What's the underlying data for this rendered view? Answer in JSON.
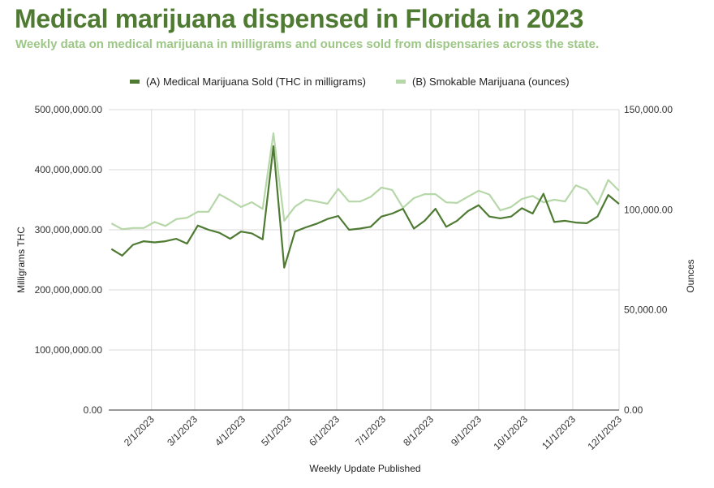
{
  "chart_data": {
    "type": "line",
    "title": "Medical marijuana dispensed in Florida in 2023",
    "subtitle": "Weekly data on medical marijuana in milligrams and ounces sold from dispensaries across the state.",
    "xlabel": "Weekly Update Published",
    "ylabel_left": "Milligrams THC",
    "ylabel_right": "Ounces",
    "ylim_left": [
      0,
      500000000
    ],
    "ylim_right": [
      0,
      150000
    ],
    "yticks_left": [
      "0.00",
      "100,000,000.00",
      "200,000,000.00",
      "300,000,000.00",
      "400,000,000.00",
      "500,000,000.00"
    ],
    "yticks_right": [
      "0.00",
      "50,000.00",
      "100,000.00",
      "150,000.00"
    ],
    "xticks": [
      "2/1/2023",
      "3/1/2023",
      "4/1/2023",
      "5/1/2023",
      "6/1/2023",
      "7/1/2023",
      "8/1/2023",
      "9/1/2023",
      "10/1/2023",
      "11/1/2023",
      "12/1/2023"
    ],
    "grid": true,
    "legend_position": "top",
    "x": [
      "2023-01-06",
      "2023-01-13",
      "2023-01-20",
      "2023-01-27",
      "2023-02-03",
      "2023-02-10",
      "2023-02-17",
      "2023-02-24",
      "2023-03-03",
      "2023-03-10",
      "2023-03-17",
      "2023-03-24",
      "2023-03-31",
      "2023-04-07",
      "2023-04-14",
      "2023-04-21",
      "2023-04-28",
      "2023-05-05",
      "2023-05-12",
      "2023-05-19",
      "2023-05-26",
      "2023-06-02",
      "2023-06-09",
      "2023-06-16",
      "2023-06-23",
      "2023-06-30",
      "2023-07-07",
      "2023-07-14",
      "2023-07-21",
      "2023-07-28",
      "2023-08-04",
      "2023-08-11",
      "2023-08-18",
      "2023-08-25",
      "2023-09-01",
      "2023-09-08",
      "2023-09-15",
      "2023-09-22",
      "2023-09-29",
      "2023-10-06",
      "2023-10-13",
      "2023-10-20",
      "2023-10-27",
      "2023-11-03",
      "2023-11-10",
      "2023-11-17",
      "2023-11-24",
      "2023-12-01"
    ],
    "series": [
      {
        "name": "(A) Medical Marijuana Sold (THC in milligrams)",
        "axis": "left",
        "color": "#4e7a32",
        "values": [
          268000000,
          257000000,
          275000000,
          281000000,
          279000000,
          281000000,
          285000000,
          277000000,
          307000000,
          300000000,
          295000000,
          285000000,
          297000000,
          294000000,
          284000000,
          439000000,
          237000000,
          297000000,
          304000000,
          310000000,
          318000000,
          323000000,
          300000000,
          302000000,
          305000000,
          322000000,
          327000000,
          335000000,
          302000000,
          315000000,
          335000000,
          305000000,
          315000000,
          331000000,
          341000000,
          322000000,
          319000000,
          322000000,
          336000000,
          327000000,
          360000000,
          313000000,
          315000000,
          312000000,
          311000000,
          322000000,
          358000000,
          343000000
        ]
      },
      {
        "name": "(B) Smokable Marijuana (ounces)",
        "axis": "right",
        "color": "#b6d7a8",
        "values": [
          93200,
          90300,
          90900,
          90900,
          93900,
          91900,
          95300,
          96000,
          99000,
          99000,
          107700,
          104700,
          101400,
          103800,
          100400,
          138200,
          94500,
          101600,
          105100,
          104100,
          103000,
          110400,
          104100,
          104100,
          106400,
          111100,
          109900,
          101000,
          105800,
          107800,
          107800,
          103700,
          103400,
          106500,
          109500,
          107600,
          99700,
          101400,
          105400,
          106900,
          103700,
          105000,
          104200,
          112200,
          109900,
          102700,
          114900,
          109500
        ]
      }
    ]
  }
}
